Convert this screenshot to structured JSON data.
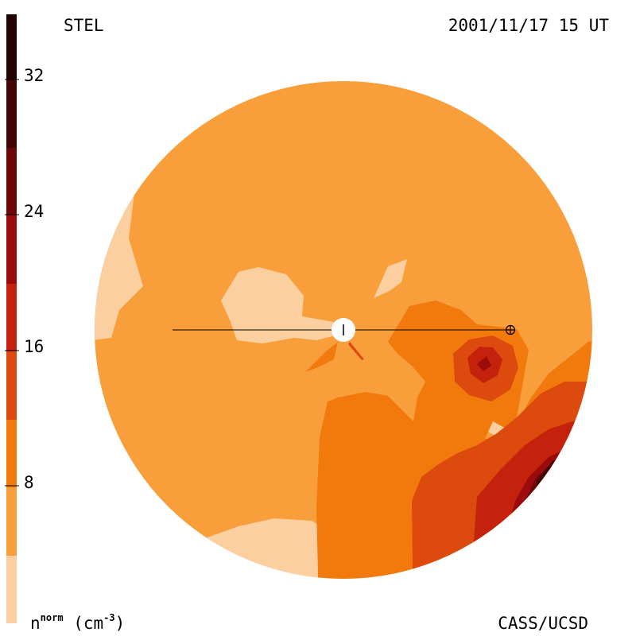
{
  "header": {
    "left_label": "STEL",
    "right_label": "2001/11/17 15 UT"
  },
  "footer": {
    "unit_base": "n",
    "unit_sup": "norm",
    "unit_suffix": "(cm",
    "unit_exp": "-3",
    "unit_close": ")",
    "credit": "CASS/UCSD"
  },
  "colorbar": {
    "ticks": [
      "8",
      "16",
      "24",
      "32"
    ],
    "tick_values": [
      8,
      16,
      24,
      32
    ],
    "range": [
      0,
      36
    ],
    "colors": [
      "#fbcfa0",
      "#f89e3a",
      "#f27a0d",
      "#dc4a0e",
      "#c4220c",
      "#9b0b0b",
      "#6e0707",
      "#430404",
      "#230202"
    ]
  },
  "colors": {
    "disk_bg": "#f89e3a"
  }
}
